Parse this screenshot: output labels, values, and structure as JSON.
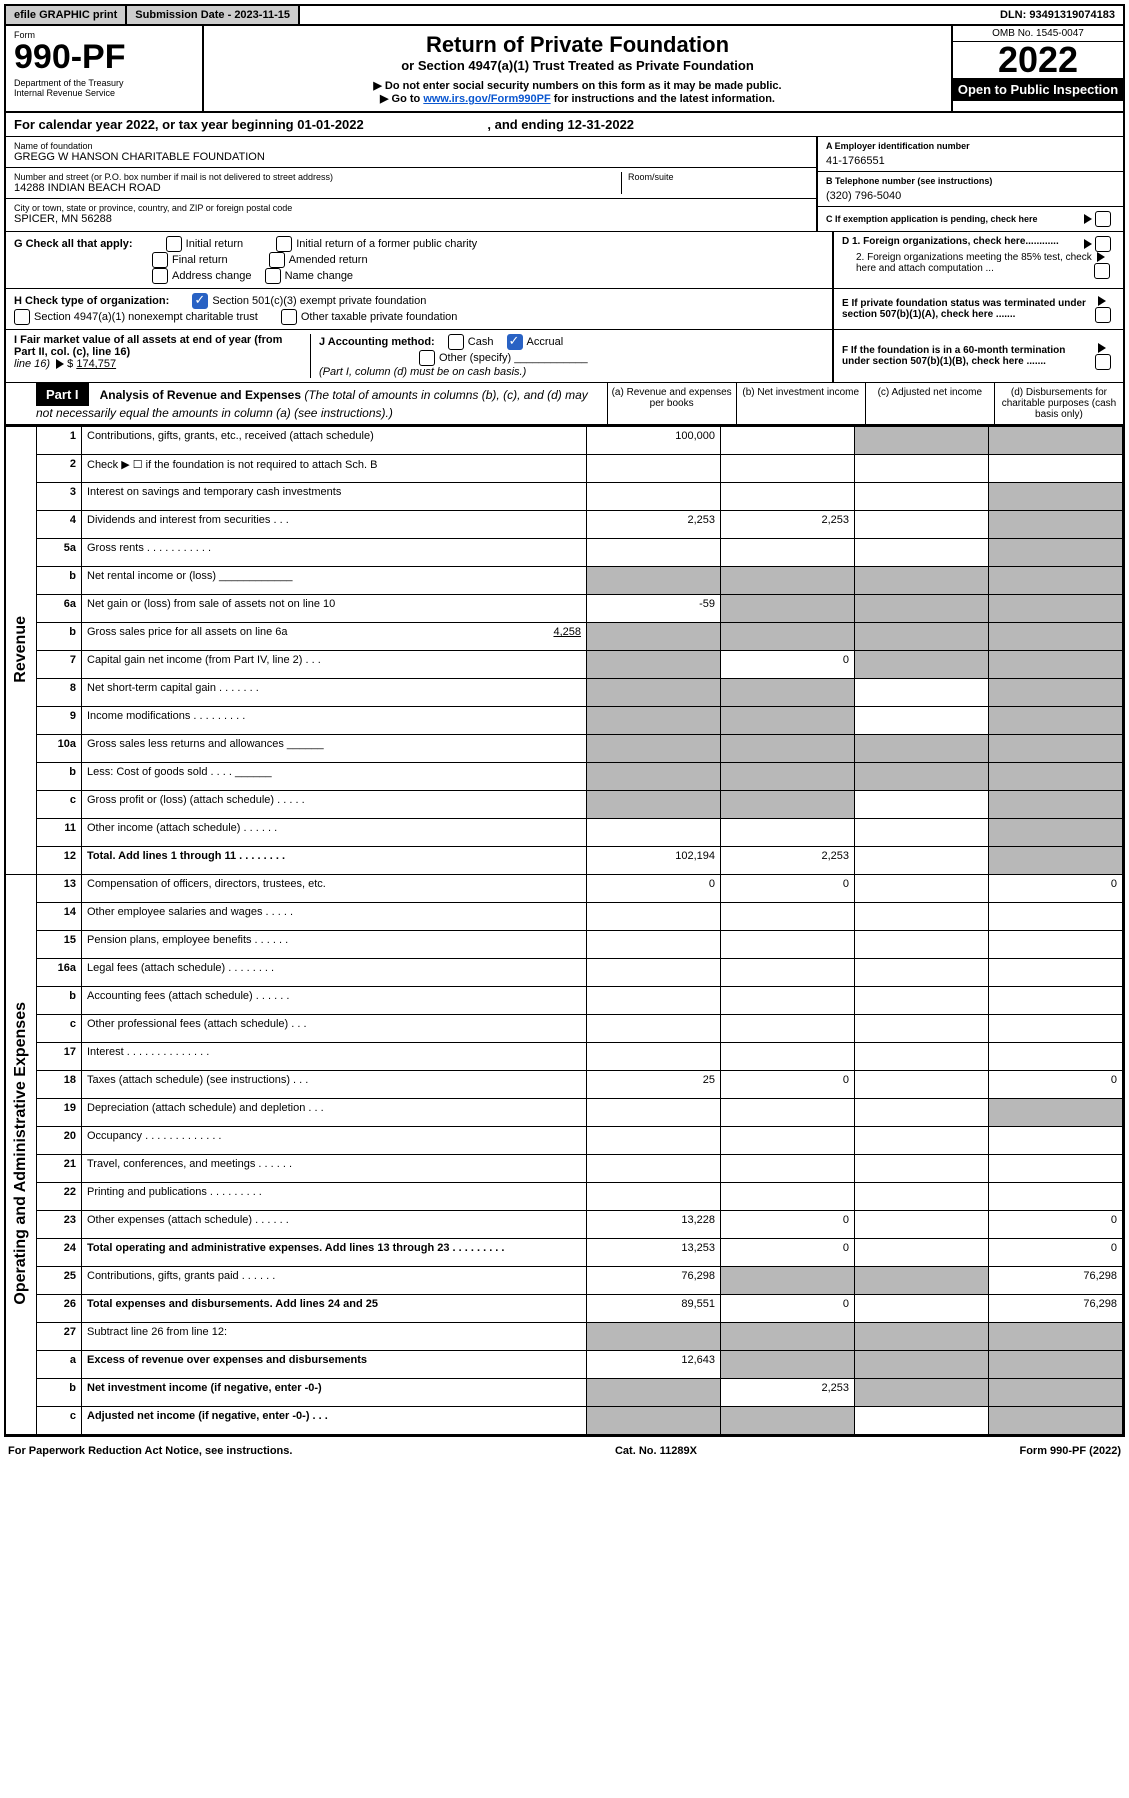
{
  "top_bar": {
    "efile": "efile GRAPHIC print",
    "submission": "Submission Date - 2023-11-15",
    "dln": "DLN: 93491319074183"
  },
  "header": {
    "form_label": "Form",
    "form_no": "990-PF",
    "dept": "Department of the Treasury",
    "irs": "Internal Revenue Service",
    "title": "Return of Private Foundation",
    "subtitle": "or Section 4947(a)(1) Trust Treated as Private Foundation",
    "note1": "▶ Do not enter social security numbers on this form as it may be made public.",
    "note2_prefix": "▶ Go to ",
    "note2_link": "www.irs.gov/Form990PF",
    "note2_suffix": " for instructions and the latest information.",
    "omb": "OMB No. 1545-0047",
    "year": "2022",
    "open": "Open to Public Inspection"
  },
  "year_row": {
    "prefix": "For calendar year 2022, or tax year beginning ",
    "begin": "01-01-2022",
    "mid": " , and ending ",
    "end": "12-31-2022"
  },
  "foundation": {
    "name_lbl": "Name of foundation",
    "name": "GREGG W HANSON CHARITABLE FOUNDATION",
    "addr_lbl": "Number and street (or P.O. box number if mail is not delivered to street address)",
    "addr": "14288 INDIAN BEACH ROAD",
    "room_lbl": "Room/suite",
    "city_lbl": "City or town, state or province, country, and ZIP or foreign postal code",
    "city": "SPICER, MN  56288",
    "ein_lbl": "A Employer identification number",
    "ein": "41-1766551",
    "phone_lbl": "B Telephone number (see instructions)",
    "phone": "(320) 796-5040",
    "c_lbl": "C If exemption application is pending, check here"
  },
  "checks": {
    "g_lbl": "G Check all that apply:",
    "g_opts": [
      "Initial return",
      "Initial return of a former public charity",
      "Final return",
      "Amended return",
      "Address change",
      "Name change"
    ],
    "h_lbl": "H Check type of organization:",
    "h1": "Section 501(c)(3) exempt private foundation",
    "h2": "Section 4947(a)(1) nonexempt charitable trust",
    "h3": "Other taxable private foundation",
    "i_lbl": "I Fair market value of all assets at end of year (from Part II, col. (c), line 16)",
    "i_val": "174,757",
    "j_lbl": "J Accounting method:",
    "j_cash": "Cash",
    "j_accrual": "Accrual",
    "j_other": "Other (specify)",
    "j_note": "(Part I, column (d) must be on cash basis.)",
    "d1": "D 1. Foreign organizations, check here............",
    "d2": "2. Foreign organizations meeting the 85% test, check here and attach computation ...",
    "e": "E  If private foundation status was terminated under section 507(b)(1)(A), check here .......",
    "f": "F  If the foundation is in a 60-month termination under section 507(b)(1)(B), check here .......",
    "cash_basis": "$"
  },
  "part1": {
    "label": "Part I",
    "desc_bold": "Analysis of Revenue and Expenses",
    "desc_rest": " (The total of amounts in columns (b), (c), and (d) may not necessarily equal the amounts in column (a) (see instructions).)",
    "cols": {
      "a": "(a)  Revenue and expenses per books",
      "b": "(b)  Net investment income",
      "c": "(c)  Adjusted net income",
      "d": "(d)  Disbursements for charitable purposes (cash basis only)"
    }
  },
  "side_labels": {
    "rev": "Revenue",
    "exp": "Operating and Administrative Expenses"
  },
  "rows": [
    {
      "n": "1",
      "label": "Contributions, gifts, grants, etc., received (attach schedule)",
      "a": "100,000",
      "b": "",
      "c": "G",
      "d": "G"
    },
    {
      "n": "2",
      "label": "Check ▶ ☐ if the foundation is not required to attach Sch. B",
      "note": true
    },
    {
      "n": "3",
      "label": "Interest on savings and temporary cash investments",
      "a": "",
      "b": "",
      "c": "",
      "d": "G"
    },
    {
      "n": "4",
      "label": "Dividends and interest from securities   .   .   .",
      "a": "2,253",
      "b": "2,253",
      "c": "",
      "d": "G"
    },
    {
      "n": "5a",
      "label": "Gross rents   .   .   .   .   .   .   .   .   .   .   .",
      "a": "",
      "b": "",
      "c": "",
      "d": "G"
    },
    {
      "n": "b",
      "label": "Net rental income or (loss)  ____________",
      "a": "G",
      "b": "G",
      "c": "G",
      "d": "G"
    },
    {
      "n": "6a",
      "label": "Net gain or (loss) from sale of assets not on line 10",
      "a": "-59",
      "b": "G",
      "c": "G",
      "d": "G"
    },
    {
      "n": "b",
      "label": "Gross sales price for all assets on line 6a",
      "val": "4,258",
      "a": "G",
      "b": "G",
      "c": "G",
      "d": "G"
    },
    {
      "n": "7",
      "label": "Capital gain net income (from Part IV, line 2)   .   .   .",
      "a": "G",
      "b": "0",
      "c": "G",
      "d": "G"
    },
    {
      "n": "8",
      "label": "Net short-term capital gain   .   .   .   .   .   .   .",
      "a": "G",
      "b": "G",
      "c": "",
      "d": "G"
    },
    {
      "n": "9",
      "label": "Income modifications   .   .   .   .   .   .   .   .   .",
      "a": "G",
      "b": "G",
      "c": "",
      "d": "G"
    },
    {
      "n": "10a",
      "label": "Gross sales less returns and allowances  ______",
      "a": "G",
      "b": "G",
      "c": "G",
      "d": "G"
    },
    {
      "n": "b",
      "label": "Less: Cost of goods sold   .   .   .   .   ______",
      "a": "G",
      "b": "G",
      "c": "G",
      "d": "G"
    },
    {
      "n": "c",
      "label": "Gross profit or (loss) (attach schedule)   .   .   .   .   .",
      "a": "G",
      "b": "G",
      "c": "",
      "d": "G"
    },
    {
      "n": "11",
      "label": "Other income (attach schedule)   .   .   .   .   .   .",
      "a": "",
      "b": "",
      "c": "",
      "d": "G"
    },
    {
      "n": "12",
      "label": "Total. Add lines 1 through 11   .   .   .   .   .   .   .   .",
      "bold": true,
      "a": "102,194",
      "b": "2,253",
      "c": "",
      "d": "G"
    },
    {
      "n": "13",
      "label": "Compensation of officers, directors, trustees, etc.",
      "a": "0",
      "b": "0",
      "c": "",
      "d": "0"
    },
    {
      "n": "14",
      "label": "Other employee salaries and wages   .   .   .   .   .",
      "a": "",
      "b": "",
      "c": "",
      "d": ""
    },
    {
      "n": "15",
      "label": "Pension plans, employee benefits   .   .   .   .   .   .",
      "a": "",
      "b": "",
      "c": "",
      "d": ""
    },
    {
      "n": "16a",
      "label": "Legal fees (attach schedule)  .   .   .   .   .   .   .   .",
      "a": "",
      "b": "",
      "c": "",
      "d": ""
    },
    {
      "n": "b",
      "label": "Accounting fees (attach schedule)  .   .   .   .   .   .",
      "a": "",
      "b": "",
      "c": "",
      "d": ""
    },
    {
      "n": "c",
      "label": "Other professional fees (attach schedule)   .   .   .",
      "a": "",
      "b": "",
      "c": "",
      "d": ""
    },
    {
      "n": "17",
      "label": "Interest  .   .   .   .   .   .   .   .   .   .   .   .   .   .",
      "a": "",
      "b": "",
      "c": "",
      "d": ""
    },
    {
      "n": "18",
      "label": "Taxes (attach schedule) (see instructions)   .   .   .",
      "a": "25",
      "b": "0",
      "c": "",
      "d": "0"
    },
    {
      "n": "19",
      "label": "Depreciation (attach schedule) and depletion   .   .   .",
      "a": "",
      "b": "",
      "c": "",
      "d": "G"
    },
    {
      "n": "20",
      "label": "Occupancy  .   .   .   .   .   .   .   .   .   .   .   .   .",
      "a": "",
      "b": "",
      "c": "",
      "d": ""
    },
    {
      "n": "21",
      "label": "Travel, conferences, and meetings  .   .   .   .   .   .",
      "a": "",
      "b": "",
      "c": "",
      "d": ""
    },
    {
      "n": "22",
      "label": "Printing and publications  .   .   .   .   .   .   .   .   .",
      "a": "",
      "b": "",
      "c": "",
      "d": ""
    },
    {
      "n": "23",
      "label": "Other expenses (attach schedule)  .   .   .   .   .   .",
      "a": "13,228",
      "b": "0",
      "c": "",
      "d": "0"
    },
    {
      "n": "24",
      "label": "Total operating and administrative expenses. Add lines 13 through 23   .   .   .   .   .   .   .   .   .",
      "bold": true,
      "a": "13,253",
      "b": "0",
      "c": "",
      "d": "0"
    },
    {
      "n": "25",
      "label": "Contributions, gifts, grants paid   .   .   .   .   .   .",
      "a": "76,298",
      "b": "G",
      "c": "G",
      "d": "76,298"
    },
    {
      "n": "26",
      "label": "Total expenses and disbursements. Add lines 24 and 25",
      "bold": true,
      "a": "89,551",
      "b": "0",
      "c": "",
      "d": "76,298"
    },
    {
      "n": "27",
      "label": "Subtract line 26 from line 12:",
      "a": "G",
      "b": "G",
      "c": "G",
      "d": "G"
    },
    {
      "n": "a",
      "label": "Excess of revenue over expenses and disbursements",
      "bold": true,
      "a": "12,643",
      "b": "G",
      "c": "G",
      "d": "G"
    },
    {
      "n": "b",
      "label": "Net investment income (if negative, enter -0-)",
      "bold": true,
      "a": "G",
      "b": "2,253",
      "c": "G",
      "d": "G"
    },
    {
      "n": "c",
      "label": "Adjusted net income (if negative, enter -0-)   .   .   .",
      "bold": true,
      "a": "G",
      "b": "G",
      "c": "",
      "d": "G"
    }
  ],
  "footer": {
    "left": "For Paperwork Reduction Act Notice, see instructions.",
    "mid": "Cat. No. 11289X",
    "right": "Form 990-PF (2022)"
  }
}
